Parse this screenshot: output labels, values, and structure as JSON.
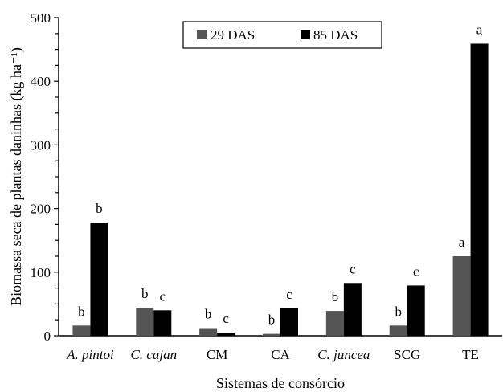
{
  "chart_data": {
    "type": "bar",
    "xlabel": "Sistemas de consórcio",
    "ylabel": "Biomassa seca de plantas daninhas (kg ha⁻¹)",
    "ylim": [
      0,
      500
    ],
    "yticks": [
      0,
      100,
      200,
      300,
      400,
      500
    ],
    "grid": false,
    "legend_position": "top-center",
    "categories": [
      "A. pintoi",
      "C. cajan",
      "CM",
      "CA",
      "C. juncea",
      "SCG",
      "TE"
    ],
    "category_italic": [
      true,
      true,
      false,
      false,
      true,
      false,
      false
    ],
    "series": [
      {
        "name": "29 DAS",
        "color": "#555555",
        "values": [
          16,
          44,
          12,
          3,
          39,
          16,
          125
        ],
        "significance": [
          "b",
          "b",
          "b",
          "b",
          "b",
          "b",
          "a"
        ]
      },
      {
        "name": "85 DAS",
        "color": "#000000",
        "values": [
          178,
          40,
          5,
          43,
          83,
          79,
          459
        ],
        "significance": [
          "b",
          "c",
          "c",
          "c",
          "c",
          "c",
          "a"
        ]
      }
    ]
  }
}
